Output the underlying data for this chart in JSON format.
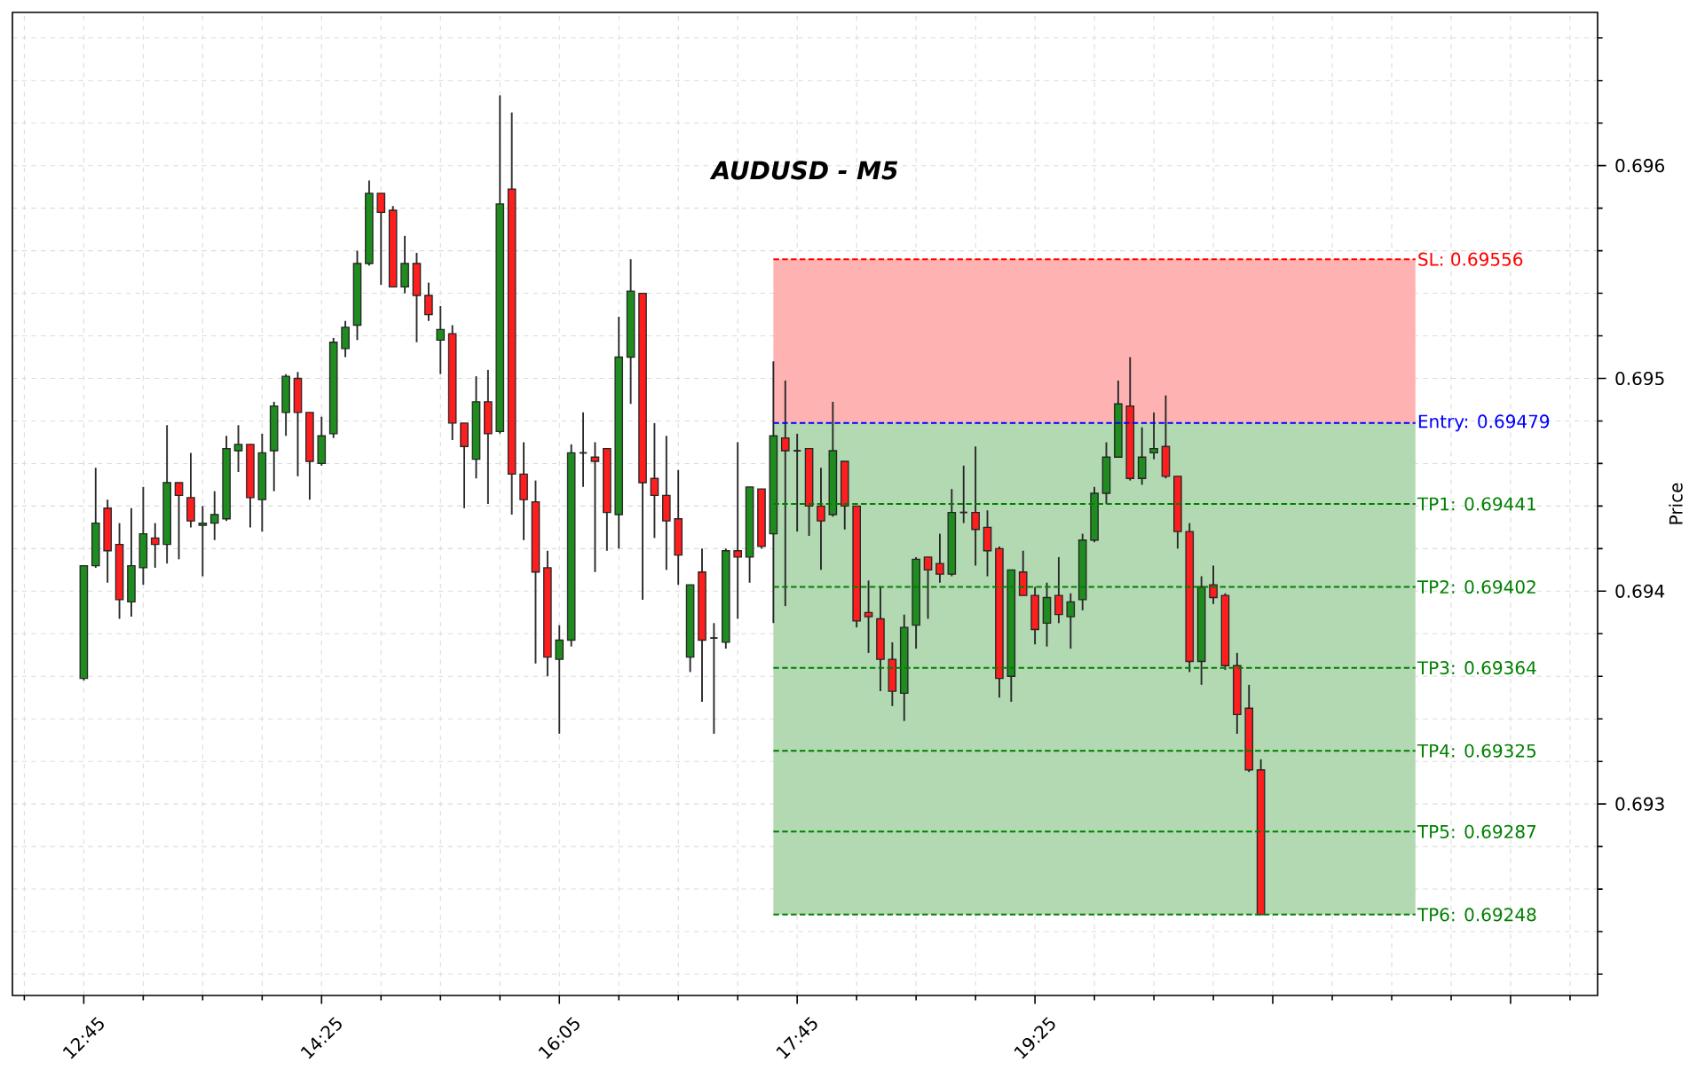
{
  "chart_data": {
    "type": "candlestick",
    "title": "AUDUSD - M5",
    "ylabel": "Price",
    "x": [
      12.75,
      12.8333,
      12.9167,
      13,
      13.0833,
      13.1667,
      13.25,
      13.3333,
      13.4167,
      13.5,
      13.5833,
      13.6667,
      13.75,
      13.8333,
      13.9167,
      14,
      14.0833,
      14.1667,
      14.25,
      14.3333,
      14.4167,
      14.5,
      14.5833,
      14.6667,
      14.75,
      14.8333,
      14.9167,
      15,
      15.0833,
      15.1667,
      15.25,
      15.3333,
      15.4167,
      15.5,
      15.5833,
      15.6667,
      15.75,
      15.8333,
      15.9167,
      16,
      16.0833,
      16.1667,
      16.25,
      16.3333,
      16.4167,
      16.5,
      16.5833,
      16.6667,
      16.75,
      16.8333,
      16.9167,
      17,
      17.0833,
      17.1667,
      17.25,
      17.3333,
      17.4167,
      17.5,
      17.5833,
      17.6667,
      17.75,
      17.8333,
      17.9167,
      18,
      18.0833,
      18.1667,
      18.25,
      18.3333,
      18.4167,
      18.5,
      18.5833,
      18.6667,
      18.75,
      18.8333,
      18.9167,
      19,
      19.0833,
      19.1667,
      19.25,
      19.3333,
      19.4167,
      19.5,
      19.5833,
      19.6667,
      19.75,
      19.8333,
      19.9167,
      20,
      20.0833,
      20.1667,
      20.25,
      20.3333,
      20.4167,
      20.5,
      20.5833,
      20.6667,
      20.75,
      20.8333,
      20.9167,
      21,
      21.0833,
      21.1667,
      21.25,
      21.3333,
      21.4167,
      21.5,
      21.5833,
      21.6667,
      21.75,
      21.8333,
      21.9167,
      22,
      22.0833
    ],
    "ohlc": [
      [
        0.69359,
        0.69412,
        0.69358,
        0.69412
      ],
      [
        0.69412,
        0.69458,
        0.69411,
        0.69432
      ],
      [
        0.69439,
        0.69443,
        0.69404,
        0.69419
      ],
      [
        0.69422,
        0.69432,
        0.69387,
        0.69396
      ],
      [
        0.69395,
        0.69439,
        0.69388,
        0.69412
      ],
      [
        0.69411,
        0.69449,
        0.69403,
        0.69427
      ],
      [
        0.69425,
        0.69432,
        0.69411,
        0.69422
      ],
      [
        0.69422,
        0.69478,
        0.69413,
        0.69451
      ],
      [
        0.69451,
        0.69451,
        0.69415,
        0.69445
      ],
      [
        0.69444,
        0.69465,
        0.6943,
        0.69433
      ],
      [
        0.69431,
        0.6944,
        0.69407,
        0.69432
      ],
      [
        0.69432,
        0.69447,
        0.69424,
        0.69436
      ],
      [
        0.69434,
        0.69473,
        0.69433,
        0.69467
      ],
      [
        0.69466,
        0.69478,
        0.69456,
        0.69469
      ],
      [
        0.69469,
        0.69469,
        0.6943,
        0.69444
      ],
      [
        0.69443,
        0.69474,
        0.69428,
        0.69465
      ],
      [
        0.69466,
        0.69489,
        0.69447,
        0.69487
      ],
      [
        0.69484,
        0.69502,
        0.69473,
        0.69501
      ],
      [
        0.695,
        0.69503,
        0.69454,
        0.69484
      ],
      [
        0.69484,
        0.69484,
        0.69443,
        0.69461
      ],
      [
        0.6946,
        0.69482,
        0.69459,
        0.69473
      ],
      [
        0.69474,
        0.69519,
        0.69472,
        0.69517
      ],
      [
        0.69514,
        0.69527,
        0.6951,
        0.69524
      ],
      [
        0.69525,
        0.6956,
        0.69518,
        0.69554
      ],
      [
        0.69554,
        0.69593,
        0.69553,
        0.69587
      ],
      [
        0.69587,
        0.69587,
        0.69544,
        0.69578
      ],
      [
        0.69579,
        0.69581,
        0.69543,
        0.69543
      ],
      [
        0.69543,
        0.69567,
        0.6954,
        0.69554
      ],
      [
        0.69554,
        0.69559,
        0.69517,
        0.69539
      ],
      [
        0.69539,
        0.69545,
        0.69527,
        0.6953
      ],
      [
        0.69518,
        0.69534,
        0.69502,
        0.69523
      ],
      [
        0.69521,
        0.69525,
        0.69471,
        0.69479
      ],
      [
        0.69479,
        0.69479,
        0.69439,
        0.69468
      ],
      [
        0.69462,
        0.69501,
        0.69453,
        0.69489
      ],
      [
        0.69489,
        0.69504,
        0.69441,
        0.69474
      ],
      [
        0.69475,
        0.69633,
        0.69474,
        0.69582
      ],
      [
        0.69589,
        0.69625,
        0.69436,
        0.69455
      ],
      [
        0.69455,
        0.6947,
        0.69424,
        0.69443
      ],
      [
        0.69442,
        0.69452,
        0.69366,
        0.69409
      ],
      [
        0.69411,
        0.69419,
        0.6936,
        0.69369
      ],
      [
        0.69368,
        0.69384,
        0.69333,
        0.69377
      ],
      [
        0.69377,
        0.69469,
        0.69374,
        0.69465
      ],
      [
        0.69465,
        0.69484,
        0.69449,
        0.69465
      ],
      [
        0.69463,
        0.6947,
        0.69409,
        0.69461
      ],
      [
        0.69467,
        0.69467,
        0.69419,
        0.69437
      ],
      [
        0.69436,
        0.69529,
        0.6942,
        0.6951
      ],
      [
        0.6951,
        0.69556,
        0.69488,
        0.69541
      ],
      [
        0.6954,
        0.6954,
        0.69396,
        0.69451
      ],
      [
        0.69453,
        0.69479,
        0.69425,
        0.69445
      ],
      [
        0.69445,
        0.69473,
        0.6941,
        0.69433
      ],
      [
        0.69434,
        0.69457,
        0.69403,
        0.69417
      ],
      [
        0.69369,
        0.69403,
        0.69362,
        0.69403
      ],
      [
        0.69409,
        0.6942,
        0.69348,
        0.69377
      ],
      [
        0.69378,
        0.69385,
        0.69333,
        0.69378
      ],
      [
        0.69376,
        0.6942,
        0.69373,
        0.69419
      ],
      [
        0.69419,
        0.6947,
        0.69387,
        0.69416
      ],
      [
        0.69416,
        0.69449,
        0.69404,
        0.69449
      ],
      [
        0.69448,
        0.69448,
        0.6942,
        0.69421
      ],
      [
        0.69427,
        0.69508,
        0.69385,
        0.69473
      ],
      [
        0.69472,
        0.69499,
        0.69393,
        0.69466
      ],
      [
        0.69466,
        0.69474,
        0.69428,
        0.69466
      ],
      [
        0.69467,
        0.69467,
        0.69426,
        0.6944
      ],
      [
        0.6944,
        0.69458,
        0.6941,
        0.69433
      ],
      [
        0.69436,
        0.69489,
        0.69435,
        0.69466
      ],
      [
        0.69461,
        0.69461,
        0.69429,
        0.6944
      ],
      [
        0.6944,
        0.6944,
        0.69383,
        0.69386
      ],
      [
        0.6939,
        0.69405,
        0.69371,
        0.69388
      ],
      [
        0.69387,
        0.69402,
        0.69353,
        0.69368
      ],
      [
        0.69368,
        0.69376,
        0.69346,
        0.69353
      ],
      [
        0.69352,
        0.69389,
        0.69339,
        0.69383
      ],
      [
        0.69384,
        0.69416,
        0.69373,
        0.69415
      ],
      [
        0.69416,
        0.69416,
        0.69387,
        0.6941
      ],
      [
        0.69413,
        0.69427,
        0.69404,
        0.69408
      ],
      [
        0.69408,
        0.69448,
        0.69407,
        0.69437
      ],
      [
        0.69437,
        0.69459,
        0.69432,
        0.69437
      ],
      [
        0.69437,
        0.69468,
        0.69412,
        0.69429
      ],
      [
        0.6943,
        0.69438,
        0.69407,
        0.69419
      ],
      [
        0.6942,
        0.69421,
        0.6935,
        0.69359
      ],
      [
        0.6936,
        0.6941,
        0.69348,
        0.6941
      ],
      [
        0.69409,
        0.69419,
        0.69398,
        0.69398
      ],
      [
        0.69398,
        0.69402,
        0.69375,
        0.69382
      ],
      [
        0.69385,
        0.69404,
        0.69374,
        0.69397
      ],
      [
        0.69398,
        0.69416,
        0.69385,
        0.69389
      ],
      [
        0.69388,
        0.69399,
        0.69373,
        0.69395
      ],
      [
        0.69396,
        0.69427,
        0.69391,
        0.69424
      ],
      [
        0.69424,
        0.69449,
        0.69423,
        0.69446
      ],
      [
        0.69446,
        0.6947,
        0.69441,
        0.69463
      ],
      [
        0.69463,
        0.69499,
        0.69463,
        0.69488
      ],
      [
        0.69487,
        0.6951,
        0.69452,
        0.69453
      ],
      [
        0.69453,
        0.69477,
        0.6945,
        0.69463
      ],
      [
        0.69465,
        0.69484,
        0.69462,
        0.69467
      ],
      [
        0.69468,
        0.69492,
        0.69453,
        0.69454
      ],
      [
        0.69454,
        0.69454,
        0.6942,
        0.69428
      ],
      [
        0.69428,
        0.69432,
        0.69362,
        0.69367
      ],
      [
        0.69367,
        0.69407,
        0.69356,
        0.69402
      ],
      [
        0.69403,
        0.69412,
        0.69394,
        0.69397
      ],
      [
        0.69398,
        0.69399,
        0.69363,
        0.69365
      ],
      [
        0.69365,
        0.69371,
        0.69333,
        0.69342
      ],
      [
        0.69345,
        0.69356,
        0.69315,
        0.69316
      ],
      [
        0.69316,
        0.69321,
        0.69248,
        0.69248
      ],
      null,
      null,
      null,
      null,
      null,
      null,
      null,
      null,
      null,
      null,
      null,
      null,
      null
    ],
    "colors": [
      "#1e8c1e",
      "#1e8c1e",
      "#ff1e1e",
      "#ff1e1e",
      "#1e8c1e",
      "#1e8c1e",
      "#ff1e1e",
      "#1e8c1e",
      "#ff1e1e",
      "#ff1e1e",
      "#1e8c1e",
      "#1e8c1e",
      "#1e8c1e",
      "#1e8c1e",
      "#ff1e1e",
      "#1e8c1e",
      "#1e8c1e",
      "#1e8c1e",
      "#ff1e1e",
      "#ff1e1e",
      "#1e8c1e",
      "#1e8c1e",
      "#1e8c1e",
      "#1e8c1e",
      "#1e8c1e",
      "#ff1e1e",
      "#ff1e1e",
      "#1e8c1e",
      "#ff1e1e",
      "#ff1e1e",
      "#1e8c1e",
      "#ff1e1e",
      "#ff1e1e",
      "#1e8c1e",
      "#ff1e1e",
      "#1e8c1e",
      "#ff1e1e",
      "#ff1e1e",
      "#ff1e1e",
      "#ff1e1e",
      "#1e8c1e",
      "#1e8c1e",
      "#262626",
      "#ff1e1e",
      "#ff1e1e",
      "#1e8c1e",
      "#1e8c1e",
      "#ff1e1e",
      "#ff1e1e",
      "#ff1e1e",
      "#ff1e1e",
      "#1e8c1e",
      "#ff1e1e",
      "#262626",
      "#1e8c1e",
      "#ff1e1e",
      "#1e8c1e",
      "#ff1e1e",
      "#1e8c1e",
      "#ff1e1e",
      "#262626",
      "#ff1e1e",
      "#ff1e1e",
      "#1e8c1e",
      "#ff1e1e",
      "#ff1e1e",
      "#ff1e1e",
      "#ff1e1e",
      "#ff1e1e",
      "#1e8c1e",
      "#1e8c1e",
      "#ff1e1e",
      "#ff1e1e",
      "#1e8c1e",
      "#262626",
      "#ff1e1e",
      "#ff1e1e",
      "#ff1e1e",
      "#1e8c1e",
      "#ff1e1e",
      "#ff1e1e",
      "#1e8c1e",
      "#ff1e1e",
      "#1e8c1e",
      "#1e8c1e",
      "#1e8c1e",
      "#1e8c1e",
      "#1e8c1e",
      "#ff1e1e",
      "#1e8c1e",
      "#1e8c1e",
      "#ff1e1e",
      "#ff1e1e",
      "#ff1e1e",
      "#1e8c1e",
      "#ff1e1e",
      "#ff1e1e",
      "#ff1e1e",
      "#ff1e1e",
      "#ff1e1e",
      null,
      null,
      null,
      null,
      null,
      null,
      null,
      null,
      null,
      null,
      null,
      null,
      null
    ],
    "series": [
      {
        "type": "line",
        "name": "SL: 0.69556",
        "color": "#ff0000",
        "line_style": "dashed",
        "values": [
          null,
          null,
          null,
          null,
          null,
          null,
          null,
          null,
          null,
          null,
          null,
          null,
          null,
          null,
          null,
          null,
          null,
          null,
          null,
          null,
          null,
          null,
          null,
          null,
          null,
          null,
          null,
          null,
          null,
          null,
          null,
          null,
          null,
          null,
          null,
          null,
          null,
          null,
          null,
          null,
          null,
          null,
          null,
          null,
          null,
          null,
          null,
          null,
          null,
          null,
          null,
          null,
          null,
          null,
          null,
          null,
          null,
          null,
          0.69556,
          0.69556,
          0.69556,
          0.69556,
          0.69556,
          0.69556,
          0.69556,
          0.69556,
          0.69556,
          0.69556,
          0.69556,
          0.69556,
          0.69556,
          0.69556,
          0.69556,
          0.69556,
          0.69556,
          0.69556,
          0.69556,
          0.69556,
          0.69556,
          0.69556,
          0.69556,
          0.69556,
          0.69556,
          0.69556,
          0.69556,
          0.69556,
          0.69556,
          0.69556,
          0.69556,
          0.69556,
          0.69556,
          0.69556,
          0.69556,
          0.69556,
          0.69556,
          0.69556,
          0.69556,
          0.69556,
          0.69556,
          0.69556,
          0.69556,
          0.69556,
          0.69556,
          0.69556,
          0.69556,
          0.69556,
          0.69556,
          0.69556,
          0.69556,
          0.69556,
          0.69556,
          0.69556,
          0.69556
        ],
        "lower": [
          null,
          null,
          null,
          null,
          null,
          null,
          null,
          null,
          null,
          null,
          null,
          null,
          null,
          null,
          null,
          null,
          null,
          null,
          null,
          null,
          null,
          null,
          null,
          null,
          null,
          null,
          null,
          null,
          null,
          null,
          null,
          null,
          null,
          null,
          null,
          null,
          null,
          null,
          null,
          null,
          null,
          null,
          null,
          null,
          null,
          null,
          null,
          null,
          null,
          null,
          null,
          null,
          null,
          null,
          null,
          null,
          null,
          null,
          0.69479,
          0.69479,
          0.69479,
          0.69479,
          0.69479,
          0.69479,
          0.69479,
          0.69479,
          0.69479,
          0.69479,
          0.69479,
          0.69479,
          0.69479,
          0.69479,
          0.69479,
          0.69479,
          0.69479,
          0.69479,
          0.69479,
          0.69479,
          0.69479,
          0.69479,
          0.69479,
          0.69479,
          0.69479,
          0.69479,
          0.69479,
          0.69479,
          0.69479,
          0.69479,
          0.69479,
          0.69479,
          0.69479,
          0.69479,
          0.69479,
          0.69479,
          0.69479,
          0.69479,
          0.69479,
          0.69479,
          0.69479,
          0.69479,
          0.69479,
          0.69479,
          0.69479,
          0.69479,
          0.69479,
          0.69479,
          0.69479,
          0.69479,
          0.69479,
          0.69479,
          0.69479,
          0.69479,
          0.69479
        ],
        "upper": [
          null,
          null,
          null,
          null,
          null,
          null,
          null,
          null,
          null,
          null,
          null,
          null,
          null,
          null,
          null,
          null,
          null,
          null,
          null,
          null,
          null,
          null,
          null,
          null,
          null,
          null,
          null,
          null,
          null,
          null,
          null,
          null,
          null,
          null,
          null,
          null,
          null,
          null,
          null,
          null,
          null,
          null,
          null,
          null,
          null,
          null,
          null,
          null,
          null,
          null,
          null,
          null,
          null,
          null,
          null,
          null,
          null,
          null,
          0.69556,
          0.69556,
          0.69556,
          0.69556,
          0.69556,
          0.69556,
          0.69556,
          0.69556,
          0.69556,
          0.69556,
          0.69556,
          0.69556,
          0.69556,
          0.69556,
          0.69556,
          0.69556,
          0.69556,
          0.69556,
          0.69556,
          0.69556,
          0.69556,
          0.69556,
          0.69556,
          0.69556,
          0.69556,
          0.69556,
          0.69556,
          0.69556,
          0.69556,
          0.69556,
          0.69556,
          0.69556,
          0.69556,
          0.69556,
          0.69556,
          0.69556,
          0.69556,
          0.69556,
          0.69556,
          0.69556,
          0.69556,
          0.69556,
          0.69556,
          0.69556,
          0.69556,
          0.69556,
          0.69556,
          0.69556,
          0.69556,
          0.69556,
          0.69556,
          0.69556,
          0.69556,
          0.69556,
          0.69556
        ]
      },
      {
        "type": "line",
        "name": "Entry: 0.69479",
        "color": "#0000ff",
        "line_style": "dashed",
        "values": [
          null,
          null,
          null,
          null,
          null,
          null,
          null,
          null,
          null,
          null,
          null,
          null,
          null,
          null,
          null,
          null,
          null,
          null,
          null,
          null,
          null,
          null,
          null,
          null,
          null,
          null,
          null,
          null,
          null,
          null,
          null,
          null,
          null,
          null,
          null,
          null,
          null,
          null,
          null,
          null,
          null,
          null,
          null,
          null,
          null,
          null,
          null,
          null,
          null,
          null,
          null,
          null,
          null,
          null,
          null,
          null,
          null,
          null,
          0.69479,
          0.69479,
          0.69479,
          0.69479,
          0.69479,
          0.69479,
          0.69479,
          0.69479,
          0.69479,
          0.69479,
          0.69479,
          0.69479,
          0.69479,
          0.69479,
          0.69479,
          0.69479,
          0.69479,
          0.69479,
          0.69479,
          0.69479,
          0.69479,
          0.69479,
          0.69479,
          0.69479,
          0.69479,
          0.69479,
          0.69479,
          0.69479,
          0.69479,
          0.69479,
          0.69479,
          0.69479,
          0.69479,
          0.69479,
          0.69479,
          0.69479,
          0.69479,
          0.69479,
          0.69479,
          0.69479,
          0.69479,
          0.69479,
          0.69479,
          0.69479,
          0.69479,
          0.69479,
          0.69479,
          0.69479,
          0.69479,
          0.69479,
          0.69479,
          0.69479,
          0.69479,
          0.69479,
          0.69479
        ]
      },
      {
        "type": "line",
        "name": "TP1: 0.69441",
        "color": "#008000",
        "line_style": "dashed",
        "values": [
          null,
          null,
          null,
          null,
          null,
          null,
          null,
          null,
          null,
          null,
          null,
          null,
          null,
          null,
          null,
          null,
          null,
          null,
          null,
          null,
          null,
          null,
          null,
          null,
          null,
          null,
          null,
          null,
          null,
          null,
          null,
          null,
          null,
          null,
          null,
          null,
          null,
          null,
          null,
          null,
          null,
          null,
          null,
          null,
          null,
          null,
          null,
          null,
          null,
          null,
          null,
          null,
          null,
          null,
          null,
          null,
          null,
          null,
          0.69441,
          0.69441,
          0.69441,
          0.69441,
          0.69441,
          0.69441,
          0.69441,
          0.69441,
          0.69441,
          0.69441,
          0.69441,
          0.69441,
          0.69441,
          0.69441,
          0.69441,
          0.69441,
          0.69441,
          0.69441,
          0.69441,
          0.69441,
          0.69441,
          0.69441,
          0.69441,
          0.69441,
          0.69441,
          0.69441,
          0.69441,
          0.69441,
          0.69441,
          0.69441,
          0.69441,
          0.69441,
          0.69441,
          0.69441,
          0.69441,
          0.69441,
          0.69441,
          0.69441,
          0.69441,
          0.69441,
          0.69441,
          0.69441,
          0.69441,
          0.69441,
          0.69441,
          0.69441,
          0.69441,
          0.69441,
          0.69441,
          0.69441,
          0.69441,
          0.69441,
          0.69441,
          0.69441,
          0.69441
        ]
      },
      {
        "type": "line",
        "name": "TP2: 0.69402",
        "color": "#008000",
        "line_style": "dashed",
        "values": [
          null,
          null,
          null,
          null,
          null,
          null,
          null,
          null,
          null,
          null,
          null,
          null,
          null,
          null,
          null,
          null,
          null,
          null,
          null,
          null,
          null,
          null,
          null,
          null,
          null,
          null,
          null,
          null,
          null,
          null,
          null,
          null,
          null,
          null,
          null,
          null,
          null,
          null,
          null,
          null,
          null,
          null,
          null,
          null,
          null,
          null,
          null,
          null,
          null,
          null,
          null,
          null,
          null,
          null,
          null,
          null,
          null,
          null,
          0.69402,
          0.69402,
          0.69402,
          0.69402,
          0.69402,
          0.69402,
          0.69402,
          0.69402,
          0.69402,
          0.69402,
          0.69402,
          0.69402,
          0.69402,
          0.69402,
          0.69402,
          0.69402,
          0.69402,
          0.69402,
          0.69402,
          0.69402,
          0.69402,
          0.69402,
          0.69402,
          0.69402,
          0.69402,
          0.69402,
          0.69402,
          0.69402,
          0.69402,
          0.69402,
          0.69402,
          0.69402,
          0.69402,
          0.69402,
          0.69402,
          0.69402,
          0.69402,
          0.69402,
          0.69402,
          0.69402,
          0.69402,
          0.69402,
          0.69402,
          0.69402,
          0.69402,
          0.69402,
          0.69402,
          0.69402,
          0.69402,
          0.69402,
          0.69402,
          0.69402,
          0.69402,
          0.69402,
          0.69402
        ]
      },
      {
        "type": "line",
        "name": "TP3: 0.69364",
        "color": "#008000",
        "line_style": "dashed",
        "values": [
          null,
          null,
          null,
          null,
          null,
          null,
          null,
          null,
          null,
          null,
          null,
          null,
          null,
          null,
          null,
          null,
          null,
          null,
          null,
          null,
          null,
          null,
          null,
          null,
          null,
          null,
          null,
          null,
          null,
          null,
          null,
          null,
          null,
          null,
          null,
          null,
          null,
          null,
          null,
          null,
          null,
          null,
          null,
          null,
          null,
          null,
          null,
          null,
          null,
          null,
          null,
          null,
          null,
          null,
          null,
          null,
          null,
          null,
          0.69364,
          0.69364,
          0.69364,
          0.69364,
          0.69364,
          0.69364,
          0.69364,
          0.69364,
          0.69364,
          0.69364,
          0.69364,
          0.69364,
          0.69364,
          0.69364,
          0.69364,
          0.69364,
          0.69364,
          0.69364,
          0.69364,
          0.69364,
          0.69364,
          0.69364,
          0.69364,
          0.69364,
          0.69364,
          0.69364,
          0.69364,
          0.69364,
          0.69364,
          0.69364,
          0.69364,
          0.69364,
          0.69364,
          0.69364,
          0.69364,
          0.69364,
          0.69364,
          0.69364,
          0.69364,
          0.69364,
          0.69364,
          0.69364,
          0.69364,
          0.69364,
          0.69364,
          0.69364,
          0.69364,
          0.69364,
          0.69364,
          0.69364,
          0.69364,
          0.69364,
          0.69364,
          0.69364,
          0.69364
        ]
      },
      {
        "type": "line",
        "name": "TP4: 0.69325",
        "color": "#008000",
        "line_style": "dashed",
        "values": [
          null,
          null,
          null,
          null,
          null,
          null,
          null,
          null,
          null,
          null,
          null,
          null,
          null,
          null,
          null,
          null,
          null,
          null,
          null,
          null,
          null,
          null,
          null,
          null,
          null,
          null,
          null,
          null,
          null,
          null,
          null,
          null,
          null,
          null,
          null,
          null,
          null,
          null,
          null,
          null,
          null,
          null,
          null,
          null,
          null,
          null,
          null,
          null,
          null,
          null,
          null,
          null,
          null,
          null,
          null,
          null,
          null,
          null,
          0.69325,
          0.69325,
          0.69325,
          0.69325,
          0.69325,
          0.69325,
          0.69325,
          0.69325,
          0.69325,
          0.69325,
          0.69325,
          0.69325,
          0.69325,
          0.69325,
          0.69325,
          0.69325,
          0.69325,
          0.69325,
          0.69325,
          0.69325,
          0.69325,
          0.69325,
          0.69325,
          0.69325,
          0.69325,
          0.69325,
          0.69325,
          0.69325,
          0.69325,
          0.69325,
          0.69325,
          0.69325,
          0.69325,
          0.69325,
          0.69325,
          0.69325,
          0.69325,
          0.69325,
          0.69325,
          0.69325,
          0.69325,
          0.69325,
          0.69325,
          0.69325,
          0.69325,
          0.69325,
          0.69325,
          0.69325,
          0.69325,
          0.69325,
          0.69325,
          0.69325,
          0.69325,
          0.69325,
          0.69325
        ]
      },
      {
        "type": "line",
        "name": "TP5: 0.69287",
        "color": "#008000",
        "line_style": "dashed",
        "values": [
          null,
          null,
          null,
          null,
          null,
          null,
          null,
          null,
          null,
          null,
          null,
          null,
          null,
          null,
          null,
          null,
          null,
          null,
          null,
          null,
          null,
          null,
          null,
          null,
          null,
          null,
          null,
          null,
          null,
          null,
          null,
          null,
          null,
          null,
          null,
          null,
          null,
          null,
          null,
          null,
          null,
          null,
          null,
          null,
          null,
          null,
          null,
          null,
          null,
          null,
          null,
          null,
          null,
          null,
          null,
          null,
          null,
          null,
          0.69287,
          0.69287,
          0.69287,
          0.69287,
          0.69287,
          0.69287,
          0.69287,
          0.69287,
          0.69287,
          0.69287,
          0.69287,
          0.69287,
          0.69287,
          0.69287,
          0.69287,
          0.69287,
          0.69287,
          0.69287,
          0.69287,
          0.69287,
          0.69287,
          0.69287,
          0.69287,
          0.69287,
          0.69287,
          0.69287,
          0.69287,
          0.69287,
          0.69287,
          0.69287,
          0.69287,
          0.69287,
          0.69287,
          0.69287,
          0.69287,
          0.69287,
          0.69287,
          0.69287,
          0.69287,
          0.69287,
          0.69287,
          0.69287,
          0.69287,
          0.69287,
          0.69287,
          0.69287,
          0.69287,
          0.69287,
          0.69287,
          0.69287,
          0.69287,
          0.69287,
          0.69287,
          0.69287,
          0.69287
        ]
      },
      {
        "type": "line",
        "name": "TP6: 0.69248",
        "color": "#008000",
        "line_style": "dashed",
        "values": [
          null,
          null,
          null,
          null,
          null,
          null,
          null,
          null,
          null,
          null,
          null,
          null,
          null,
          null,
          null,
          null,
          null,
          null,
          null,
          null,
          null,
          null,
          null,
          null,
          null,
          null,
          null,
          null,
          null,
          null,
          null,
          null,
          null,
          null,
          null,
          null,
          null,
          null,
          null,
          null,
          null,
          null,
          null,
          null,
          null,
          null,
          null,
          null,
          null,
          null,
          null,
          null,
          null,
          null,
          null,
          null,
          null,
          null,
          0.69248,
          0.69248,
          0.69248,
          0.69248,
          0.69248,
          0.69248,
          0.69248,
          0.69248,
          0.69248,
          0.69248,
          0.69248,
          0.69248,
          0.69248,
          0.69248,
          0.69248,
          0.69248,
          0.69248,
          0.69248,
          0.69248,
          0.69248,
          0.69248,
          0.69248,
          0.69248,
          0.69248,
          0.69248,
          0.69248,
          0.69248,
          0.69248,
          0.69248,
          0.69248,
          0.69248,
          0.69248,
          0.69248,
          0.69248,
          0.69248,
          0.69248,
          0.69248,
          0.69248,
          0.69248,
          0.69248,
          0.69248,
          0.69248,
          0.69248,
          0.69248,
          0.69248,
          0.69248,
          0.69248,
          0.69248,
          0.69248,
          0.69248,
          0.69248,
          0.69248,
          0.69248,
          0.69248,
          0.69248
        ],
        "lower": [
          null,
          null,
          null,
          null,
          null,
          null,
          null,
          null,
          null,
          null,
          null,
          null,
          null,
          null,
          null,
          null,
          null,
          null,
          null,
          null,
          null,
          null,
          null,
          null,
          null,
          null,
          null,
          null,
          null,
          null,
          null,
          null,
          null,
          null,
          null,
          null,
          null,
          null,
          null,
          null,
          null,
          null,
          null,
          null,
          null,
          null,
          null,
          null,
          null,
          null,
          null,
          null,
          null,
          null,
          null,
          null,
          null,
          null,
          0.69248,
          0.69248,
          0.69248,
          0.69248,
          0.69248,
          0.69248,
          0.69248,
          0.69248,
          0.69248,
          0.69248,
          0.69248,
          0.69248,
          0.69248,
          0.69248,
          0.69248,
          0.69248,
          0.69248,
          0.69248,
          0.69248,
          0.69248,
          0.69248,
          0.69248,
          0.69248,
          0.69248,
          0.69248,
          0.69248,
          0.69248,
          0.69248,
          0.69248,
          0.69248,
          0.69248,
          0.69248,
          0.69248,
          0.69248,
          0.69248,
          0.69248,
          0.69248,
          0.69248,
          0.69248,
          0.69248,
          0.69248,
          0.69248,
          0.69248,
          0.69248,
          0.69248,
          0.69248,
          0.69248,
          0.69248,
          0.69248,
          0.69248,
          0.69248,
          0.69248,
          0.69248,
          0.69248,
          0.69248
        ],
        "upper": [
          null,
          null,
          null,
          null,
          null,
          null,
          null,
          null,
          null,
          null,
          null,
          null,
          null,
          null,
          null,
          null,
          null,
          null,
          null,
          null,
          null,
          null,
          null,
          null,
          null,
          null,
          null,
          null,
          null,
          null,
          null,
          null,
          null,
          null,
          null,
          null,
          null,
          null,
          null,
          null,
          null,
          null,
          null,
          null,
          null,
          null,
          null,
          null,
          null,
          null,
          null,
          null,
          null,
          null,
          null,
          null,
          null,
          null,
          0.69479,
          0.69479,
          0.69479,
          0.69479,
          0.69479,
          0.69479,
          0.69479,
          0.69479,
          0.69479,
          0.69479,
          0.69479,
          0.69479,
          0.69479,
          0.69479,
          0.69479,
          0.69479,
          0.69479,
          0.69479,
          0.69479,
          0.69479,
          0.69479,
          0.69479,
          0.69479,
          0.69479,
          0.69479,
          0.69479,
          0.69479,
          0.69479,
          0.69479,
          0.69479,
          0.69479,
          0.69479,
          0.69479,
          0.69479,
          0.69479,
          0.69479,
          0.69479,
          0.69479,
          0.69479,
          0.69479,
          0.69479,
          0.69479,
          0.69479,
          0.69479,
          0.69479,
          0.69479,
          0.69479,
          0.69479,
          0.69479,
          0.69479,
          0.69479,
          0.69479,
          0.69479,
          0.69479,
          0.69479
        ]
      }
    ],
    "xlim": [
      12.25,
      23.36
    ],
    "ylim": [
      0.6921,
      0.69672
    ],
    "xticks": [
      {
        "value": 12.75,
        "label": "12:45"
      },
      {
        "value": 14.4167,
        "label": "14:25"
      },
      {
        "value": 16.0833,
        "label": "16:05"
      },
      {
        "value": 17.75,
        "label": "17:45"
      },
      {
        "value": 19.4167,
        "label": "19:25"
      },
      {
        "value": 21.0833,
        "label": null
      },
      {
        "value": 22.75,
        "label": null
      }
    ],
    "yticks": [
      0.693,
      0.694,
      0.695,
      0.696
    ],
    "grid": true
  }
}
